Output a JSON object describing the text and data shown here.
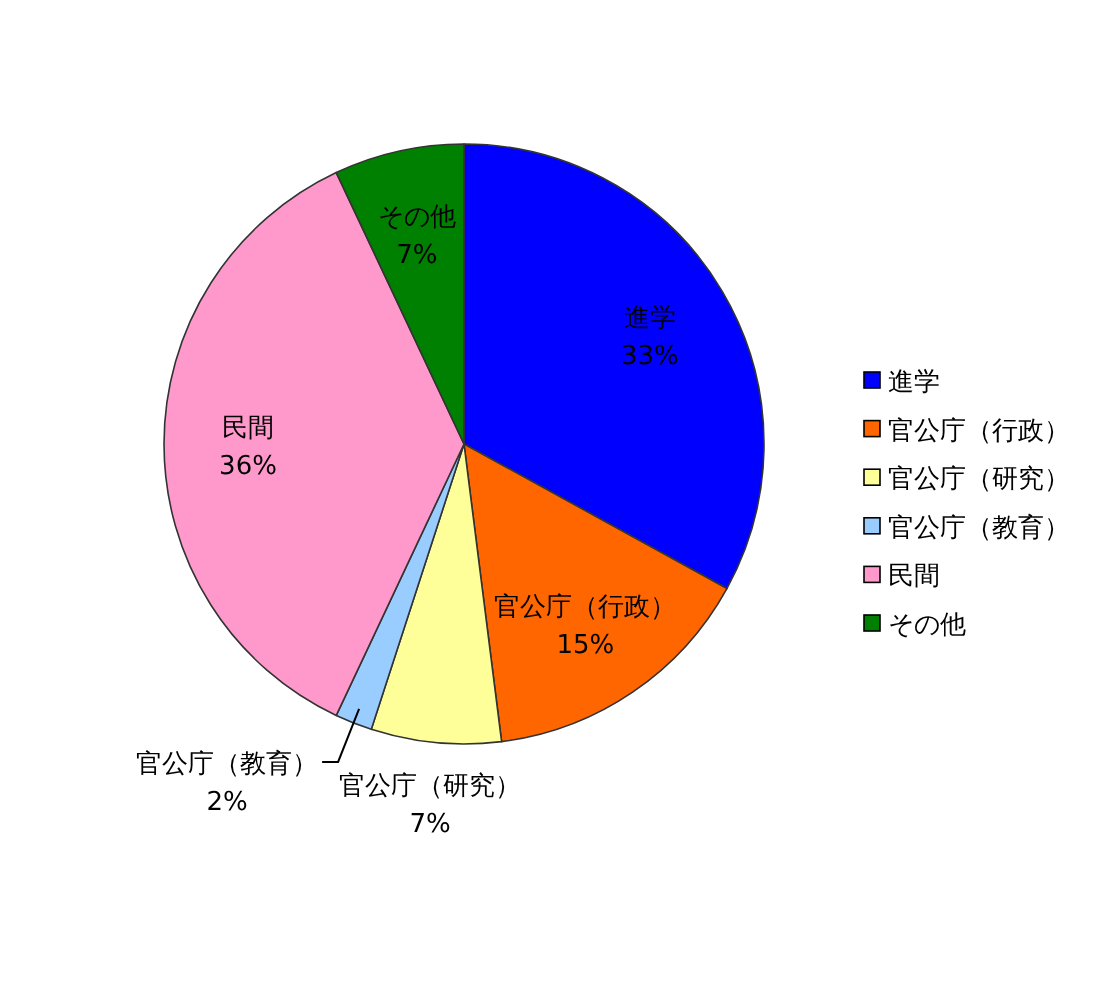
{
  "chart_data": {
    "type": "pie",
    "categories": [
      "進学",
      "官公庁（行政）",
      "官公庁（研究）",
      "官公庁（教育）",
      "民間",
      "その他"
    ],
    "values": [
      33,
      15,
      7,
      2,
      36,
      7
    ],
    "value_labels": [
      "33%",
      "15%",
      "7%",
      "2%",
      "36%",
      "7%"
    ],
    "colors": [
      "#0000ff",
      "#ff6600",
      "#ffff99",
      "#99ccff",
      "#ff99cc",
      "#008000"
    ],
    "legend": "right"
  }
}
